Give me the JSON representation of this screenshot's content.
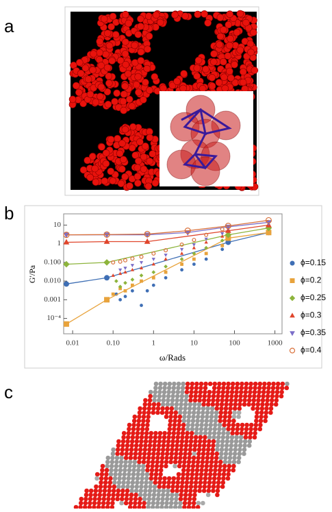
{
  "panel_labels": [
    "a",
    "b",
    "c"
  ],
  "chart_data": {
    "type": "scatter",
    "ylabel": "G'/Pa",
    "xlabel": "ω/Rads",
    "xscale": "log",
    "yscale": "log",
    "xlim": [
      0.006,
      1500
    ],
    "ylim": [
      1.5e-05,
      40
    ],
    "xticks": [
      0.01,
      {
        "value": 0.1,
        "label": "0.10"
      },
      1,
      10,
      100,
      1000
    ],
    "yticks": [
      {
        "value": 0.0001,
        "label": "10⁻⁴"
      },
      0.001,
      {
        "value": 0.01,
        "label": "0.010"
      },
      {
        "value": 0.1,
        "label": "0.100"
      },
      1,
      10
    ],
    "legend": "right",
    "series": [
      {
        "name": "ϕ=0.15",
        "color": "#3f6fb5",
        "marker": "circle",
        "x": [
          0.007,
          0.07,
          70,
          700
        ],
        "values": [
          0.007,
          0.015,
          1.2,
          4
        ],
        "x_small": [
          0.12,
          0.15,
          0.2,
          0.3,
          0.5,
          0.7,
          1,
          2,
          5,
          10,
          20,
          50
        ],
        "values_small": [
          0.002,
          0.001,
          0.0015,
          0.003,
          0.0005,
          0.003,
          0.006,
          0.015,
          0.04,
          0.08,
          0.15,
          0.5
        ]
      },
      {
        "name": "ϕ=0.2",
        "color": "#e8a33c",
        "marker": "square",
        "x": [
          0.007,
          0.07,
          70,
          700
        ],
        "values": [
          5e-05,
          0.001,
          2,
          4
        ],
        "x_small": [
          0.1,
          0.15,
          0.2,
          0.3,
          0.5,
          1,
          2,
          5,
          10,
          20,
          50
        ],
        "values_small": [
          0.002,
          0.004,
          0.003,
          0.006,
          0.01,
          0.015,
          0.03,
          0.08,
          0.15,
          0.3,
          0.8
        ]
      },
      {
        "name": "ϕ=0.25",
        "color": "#8db43c",
        "marker": "diamond",
        "x": [
          0.007,
          0.07,
          70,
          700
        ],
        "values": [
          0.08,
          0.1,
          3,
          7
        ],
        "x_small": [
          0.12,
          0.15,
          0.2,
          0.3,
          0.5,
          1,
          2,
          5,
          10,
          20,
          50
        ],
        "values_small": [
          0.01,
          0.005,
          0.008,
          0.012,
          0.02,
          0.03,
          0.06,
          0.15,
          0.3,
          0.6,
          1.5
        ]
      },
      {
        "name": "ϕ=0.3",
        "color": "#e0452b",
        "marker": "triangle",
        "x": [
          0.007,
          0.07,
          0.7,
          70,
          700
        ],
        "values": [
          1.2,
          1.3,
          1.3,
          5,
          10
        ],
        "x_small": [
          0.1,
          0.15,
          0.2,
          0.3,
          0.5,
          1,
          2,
          5,
          10,
          20,
          50
        ],
        "values_small": [
          0.02,
          0.025,
          0.03,
          0.04,
          0.05,
          0.08,
          0.15,
          0.3,
          0.6,
          1.2,
          2.5
        ]
      },
      {
        "name": "ϕ=0.35",
        "color": "#7b6ec8",
        "marker": "triangle-down",
        "x": [
          0.007,
          0.07,
          0.7,
          7,
          70,
          700
        ],
        "values": [
          3,
          3,
          3,
          4,
          8,
          14
        ],
        "x_small": [
          0.15,
          0.2,
          0.3,
          0.5,
          1,
          2,
          5,
          10,
          20,
          50
        ],
        "values_small": [
          0.04,
          0.05,
          0.07,
          0.1,
          0.15,
          0.25,
          0.5,
          0.9,
          1.8,
          3.5
        ]
      },
      {
        "name": "ϕ=0.4",
        "color": "#d9703a",
        "marker": "open-circle",
        "x": [
          0.007,
          0.07,
          0.7,
          7,
          70,
          700
        ],
        "values": [
          3,
          3.1,
          3.3,
          5,
          9,
          18
        ],
        "x_small": [
          0.1,
          0.15,
          0.2,
          0.3,
          0.5,
          1,
          2,
          5,
          10,
          20,
          50
        ],
        "values_small": [
          0.1,
          0.11,
          0.13,
          0.16,
          0.2,
          0.3,
          0.45,
          0.9,
          1.6,
          3,
          6
        ]
      }
    ]
  }
}
